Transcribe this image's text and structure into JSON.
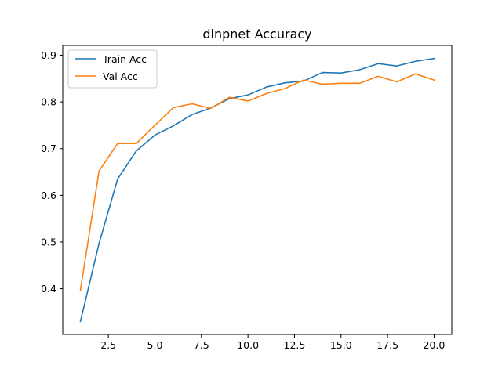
{
  "chart_data": {
    "type": "line",
    "title": "dinpnet Accuracy",
    "xlabel": "",
    "ylabel": "",
    "x": [
      1,
      2,
      3,
      4,
      5,
      6,
      7,
      8,
      9,
      10,
      11,
      12,
      13,
      14,
      15,
      16,
      17,
      18,
      19,
      20
    ],
    "series": [
      {
        "name": "Train Acc",
        "color": "#1f77b4",
        "values": [
          0.33,
          0.497,
          0.635,
          0.695,
          0.729,
          0.749,
          0.773,
          0.787,
          0.807,
          0.815,
          0.832,
          0.841,
          0.845,
          0.863,
          0.862,
          0.869,
          0.882,
          0.877,
          0.887,
          0.893
        ]
      },
      {
        "name": "Val Acc",
        "color": "#ff7f0e",
        "values": [
          0.397,
          0.652,
          0.711,
          0.711,
          0.75,
          0.788,
          0.796,
          0.786,
          0.81,
          0.802,
          0.818,
          0.829,
          0.847,
          0.838,
          0.84,
          0.84,
          0.855,
          0.843,
          0.86,
          0.847
        ]
      }
    ],
    "xlim": [
      0.05,
      20.95
    ],
    "ylim": [
      0.302,
      0.921
    ],
    "xticks": [
      2.5,
      5.0,
      7.5,
      10.0,
      12.5,
      15.0,
      17.5,
      20.0
    ],
    "xtick_labels": [
      "2.5",
      "5.0",
      "7.5",
      "10.0",
      "12.5",
      "15.0",
      "17.5",
      "20.0"
    ],
    "yticks": [
      0.4,
      0.5,
      0.6,
      0.7,
      0.8,
      0.9
    ],
    "ytick_labels": [
      "0.4",
      "0.5",
      "0.6",
      "0.7",
      "0.8",
      "0.9"
    ],
    "grid": false,
    "legend_position": "top-left"
  }
}
